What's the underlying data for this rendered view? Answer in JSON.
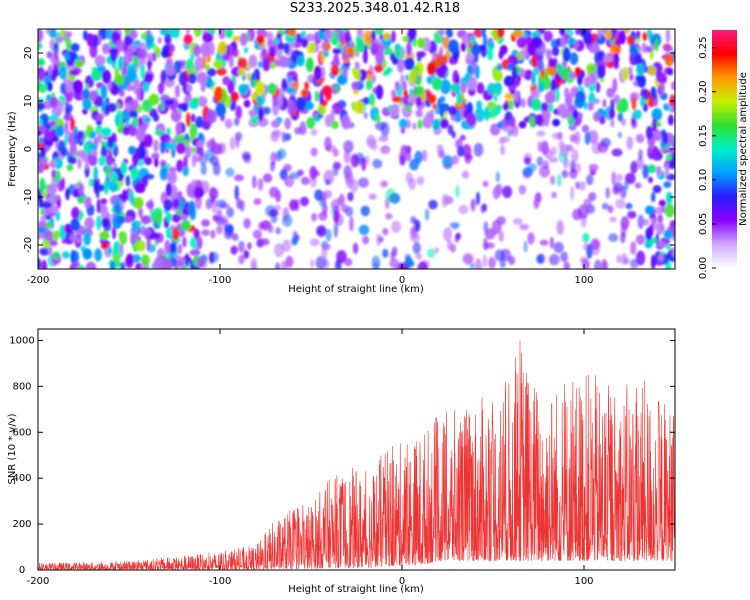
{
  "page": {
    "title": "S233.2025.348.01.42.R18"
  },
  "chart_data": [
    {
      "type": "heatmap",
      "xlabel": "Height of straight line (km)",
      "ylabel": "Frequency (Hz)",
      "xlim": [
        -200,
        150
      ],
      "ylim": [
        -25,
        25
      ],
      "xticks": [
        -200,
        -100,
        0,
        100
      ],
      "xtick_labels": [
        "-200",
        "-100",
        "0",
        "100"
      ],
      "yticks": [
        20,
        10,
        0,
        -10,
        -20
      ],
      "ytick_labels": [
        "20",
        "10",
        "0",
        "-10",
        "-20"
      ],
      "colorbar": {
        "label": "Normalized spectral amplitude",
        "range": [
          0,
          0.27
        ],
        "ticks": [
          0,
          0.05,
          0.1,
          0.15,
          0.2,
          0.25
        ],
        "tick_labels": [
          "0.00",
          "0.05",
          "0.10",
          "0.15",
          "0.20",
          "0.25"
        ],
        "colors": [
          "#ffffff",
          "#cfa8ff",
          "#8a00ff",
          "#2a1cff",
          "#00a0ff",
          "#00f0c8",
          "#30e030",
          "#c8f000",
          "#ff9900",
          "#ff0000",
          "#ff1a80"
        ]
      },
      "grid": false
    },
    {
      "type": "line",
      "xlabel": "Height of straight line (km)",
      "ylabel": "SNR (10 * v/v)",
      "xlim": [
        -200,
        150
      ],
      "ylim": [
        0,
        1050
      ],
      "xticks": [
        -200,
        -100,
        0,
        100
      ],
      "xtick_labels": [
        "-200",
        "-100",
        "0",
        "100"
      ],
      "yticks": [
        0,
        200,
        400,
        600,
        800,
        1000
      ],
      "ytick_labels": [
        "0",
        "200",
        "400",
        "600",
        "800",
        "1000"
      ],
      "line_color": "#ee3333",
      "grid": false,
      "envelope": {
        "x": [
          -200,
          -150,
          -100,
          -80,
          -70,
          -60,
          -50,
          -40,
          -30,
          -20,
          -10,
          0,
          10,
          20,
          30,
          40,
          50,
          60,
          65,
          70,
          80,
          90,
          100,
          110,
          120,
          130,
          140,
          150
        ],
        "min": [
          2,
          2,
          3,
          3,
          5,
          5,
          5,
          10,
          10,
          10,
          15,
          20,
          20,
          40,
          40,
          40,
          40,
          40,
          40,
          40,
          40,
          40,
          40,
          40,
          40,
          40,
          40,
          40
        ],
        "max": [
          30,
          40,
          80,
          110,
          220,
          270,
          300,
          400,
          450,
          430,
          520,
          560,
          610,
          680,
          700,
          750,
          760,
          850,
          1050,
          850,
          840,
          820,
          880,
          830,
          800,
          850,
          780,
          720
        ]
      }
    }
  ]
}
